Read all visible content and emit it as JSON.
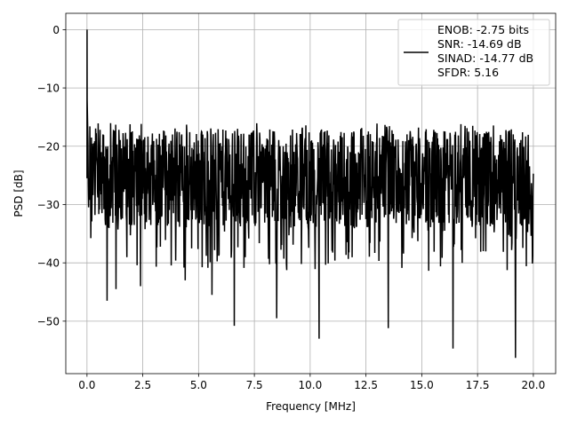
{
  "chart_data": {
    "type": "line",
    "title": "",
    "xlabel": "Frequency [MHz]",
    "ylabel": "PSD [dB]",
    "xlim": [
      -0.95,
      21.0
    ],
    "ylim": [
      -59.0,
      2.8
    ],
    "x_ticks": [
      0.0,
      2.5,
      5.0,
      7.5,
      10.0,
      12.5,
      15.0,
      17.5,
      20.0
    ],
    "x_tick_labels": [
      "0.0",
      "2.5",
      "5.0",
      "7.5",
      "10.0",
      "12.5",
      "15.0",
      "17.5",
      "20.0"
    ],
    "y_ticks": [
      0,
      -10,
      -20,
      -30,
      -40,
      -50
    ],
    "y_tick_labels": [
      "0",
      "−10",
      "−20",
      "−30",
      "−40",
      "−50"
    ],
    "grid": true,
    "legend_position": "top-right",
    "series": [
      {
        "name": "ENOB: -2.75 bits\nSNR: -14.69 dB\nSINAD: -14.77 dB\nSFDR: 5.16",
        "color": "#000000",
        "x_start": 0.0,
        "x_end": 20.0,
        "peak": {
          "x": 0.0,
          "y": 0.0
        },
        "typical_level": -25.5,
        "typical_spread": [
          -32,
          -19
        ],
        "notable_dips": [
          {
            "x": 0.9,
            "y": -46.5
          },
          {
            "x": 1.3,
            "y": -44.5
          },
          {
            "x": 2.4,
            "y": -44.0
          },
          {
            "x": 4.4,
            "y": -43.0
          },
          {
            "x": 5.6,
            "y": -45.5
          },
          {
            "x": 6.6,
            "y": -50.8
          },
          {
            "x": 8.5,
            "y": -49.5
          },
          {
            "x": 10.4,
            "y": -53.0
          },
          {
            "x": 13.5,
            "y": -51.2
          },
          {
            "x": 16.4,
            "y": -54.7
          },
          {
            "x": 19.2,
            "y": -56.3
          }
        ]
      }
    ]
  }
}
